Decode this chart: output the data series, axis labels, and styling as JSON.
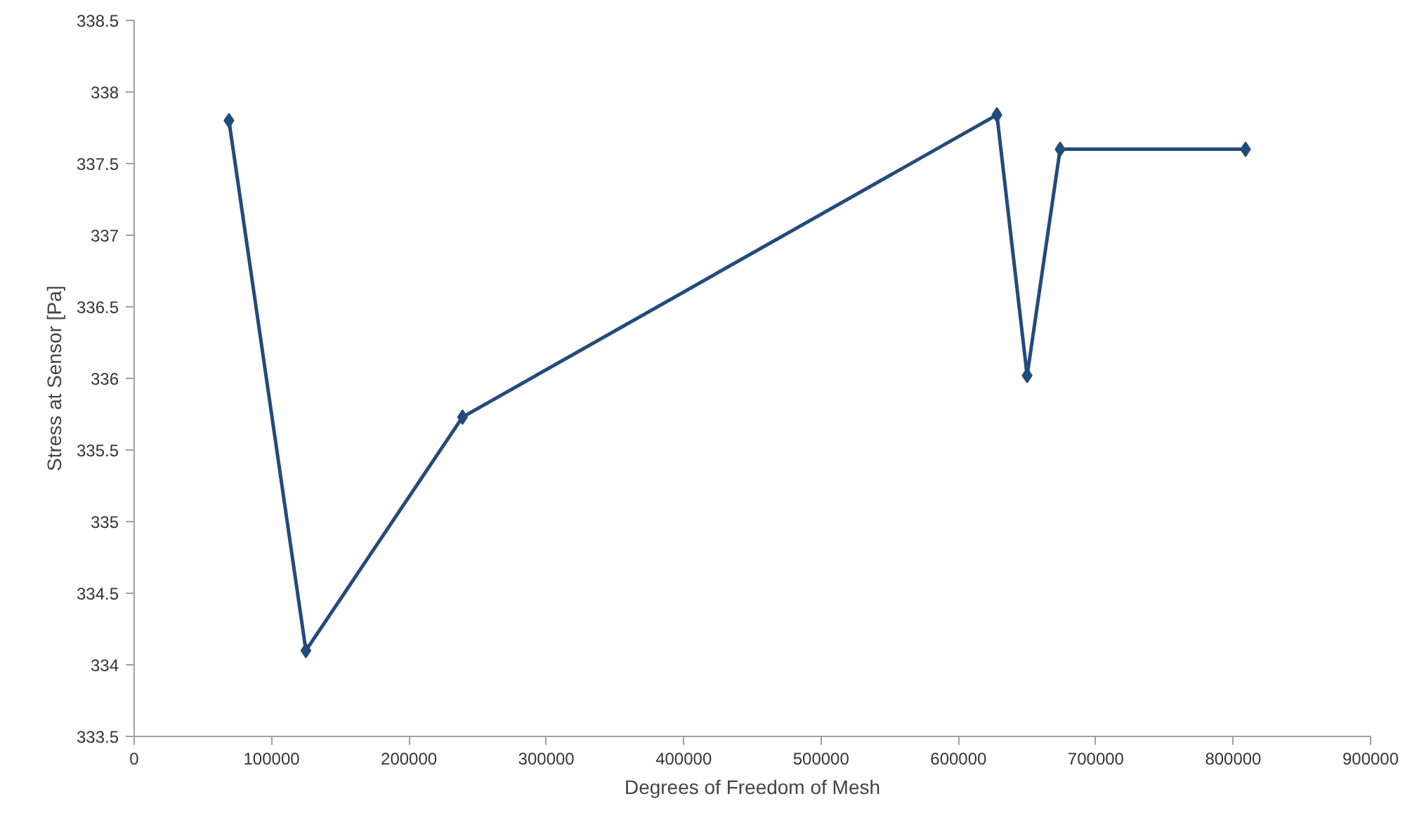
{
  "chart_data": {
    "type": "line",
    "xlabel": "Degrees of Freedom of Mesh",
    "ylabel": "Stress at Sensor [Pa]",
    "x": [
      69000,
      125000,
      239000,
      628000,
      650000,
      674000,
      809000
    ],
    "series": [
      {
        "color": "#234b7c",
        "values": [
          337.8,
          334.1,
          335.73,
          337.84,
          336.02,
          337.6,
          337.6
        ]
      }
    ],
    "xlim": [
      0,
      900000
    ],
    "xticks": [
      0,
      100000,
      200000,
      300000,
      400000,
      500000,
      600000,
      700000,
      800000,
      900000
    ],
    "ylim": [
      333.5,
      338.5
    ],
    "yticks": [
      {
        "value": 333.5,
        "label": "333.5"
      },
      {
        "value": 334,
        "label": "334"
      },
      {
        "value": 334.5,
        "label": "334.5"
      },
      {
        "value": 335,
        "label": "335"
      },
      {
        "value": 335.5,
        "label": "335.5"
      },
      {
        "value": 336,
        "label": "336"
      },
      {
        "value": 336.5,
        "label": "336.5"
      },
      {
        "value": 337,
        "label": "337"
      },
      {
        "value": 337.5,
        "label": "337.5"
      },
      {
        "value": 338,
        "label": "338"
      },
      {
        "value": 338.5,
        "label": "338.5"
      }
    ],
    "marker": "diamond",
    "line_style": "solid"
  }
}
